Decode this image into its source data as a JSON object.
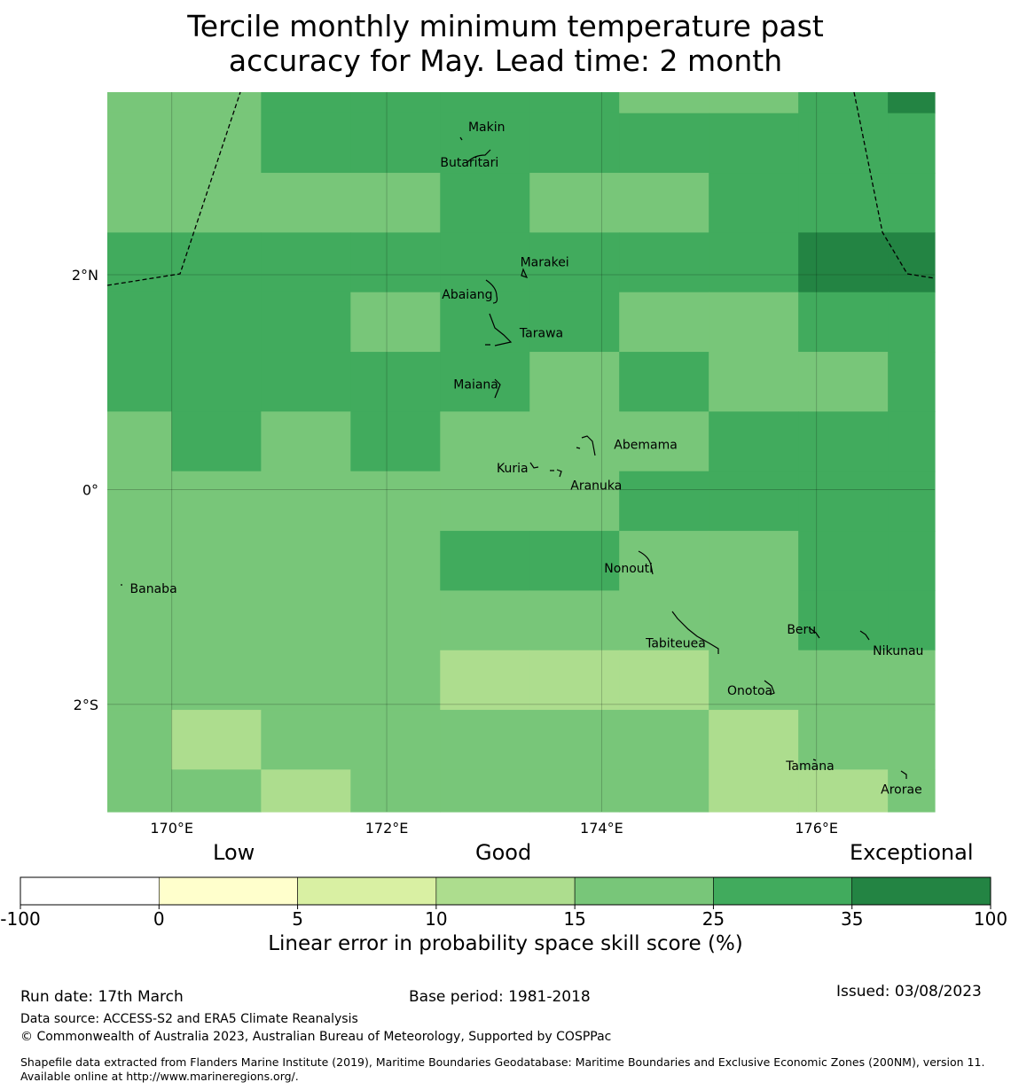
{
  "title_line1": "Tercile monthly minimum temperature past",
  "title_line2": "accuracy for May. Lead time: 2 month",
  "map": {
    "lon_range": [
      169.4,
      177.1
    ],
    "lat_range": [
      -3.0,
      3.7
    ],
    "lon_ticks": [
      {
        "value": 170,
        "label": "170°E"
      },
      {
        "value": 172,
        "label": "172°E"
      },
      {
        "value": 174,
        "label": "174°E"
      },
      {
        "value": 176,
        "label": "176°E"
      }
    ],
    "lat_ticks": [
      {
        "value": 2,
        "label": "2°N"
      },
      {
        "value": 0,
        "label": "0°"
      },
      {
        "value": -2,
        "label": "2°S"
      }
    ],
    "grid_bins": [
      [
        4,
        4,
        5,
        5,
        5,
        5,
        4,
        4,
        5,
        6
      ],
      [
        4,
        4,
        5,
        5,
        5,
        5,
        5,
        5,
        5,
        5
      ],
      [
        4,
        4,
        4,
        4,
        5,
        4,
        4,
        5,
        5,
        5
      ],
      [
        5,
        5,
        5,
        5,
        5,
        5,
        5,
        5,
        6,
        6
      ],
      [
        5,
        5,
        5,
        4,
        5,
        5,
        4,
        4,
        5,
        5
      ],
      [
        5,
        5,
        5,
        5,
        5,
        4,
        5,
        4,
        4,
        5
      ],
      [
        4,
        5,
        4,
        5,
        4,
        4,
        4,
        5,
        5,
        5
      ],
      [
        4,
        4,
        4,
        4,
        4,
        4,
        5,
        5,
        5,
        5
      ],
      [
        4,
        4,
        4,
        4,
        5,
        5,
        4,
        4,
        5,
        5
      ],
      [
        4,
        4,
        4,
        4,
        4,
        4,
        4,
        4,
        5,
        5
      ],
      [
        4,
        4,
        4,
        4,
        3,
        3,
        3,
        4,
        4,
        4
      ],
      [
        4,
        3,
        4,
        4,
        4,
        4,
        4,
        3,
        4,
        4
      ],
      [
        4,
        4,
        3,
        4,
        4,
        4,
        4,
        3,
        3,
        4
      ]
    ],
    "islands": [
      {
        "name": "Makin",
        "lon": 172.93,
        "lat": 3.38
      },
      {
        "name": "Butaritari",
        "lon": 172.77,
        "lat": 3.05
      },
      {
        "name": "Marakei",
        "lon": 173.47,
        "lat": 2.12
      },
      {
        "name": "Abaiang",
        "lon": 172.75,
        "lat": 1.82
      },
      {
        "name": "Tarawa",
        "lon": 173.44,
        "lat": 1.46
      },
      {
        "name": "Maiana",
        "lon": 172.83,
        "lat": 0.98
      },
      {
        "name": "Abemama",
        "lon": 174.41,
        "lat": 0.42
      },
      {
        "name": "Kuria",
        "lon": 173.17,
        "lat": 0.2
      },
      {
        "name": "Aranuka",
        "lon": 173.95,
        "lat": 0.04
      },
      {
        "name": "Nonouti",
        "lon": 174.25,
        "lat": -0.73
      },
      {
        "name": "Banaba",
        "lon": 169.83,
        "lat": -0.92
      },
      {
        "name": "Beru",
        "lon": 175.86,
        "lat": -1.3
      },
      {
        "name": "Tabiteuea",
        "lon": 174.69,
        "lat": -1.43
      },
      {
        "name": "Nikunau",
        "lon": 176.76,
        "lat": -1.5
      },
      {
        "name": "Onotoa",
        "lon": 175.38,
        "lat": -1.87
      },
      {
        "name": "Tamana",
        "lon": 175.94,
        "lat": -2.57
      },
      {
        "name": "Arorae",
        "lon": 176.79,
        "lat": -2.79
      }
    ]
  },
  "colorbar": {
    "category_low": "Low",
    "category_good": "Good",
    "category_exceptional": "Exceptional",
    "tick_labels": [
      "-100",
      "0",
      "5",
      "10",
      "15",
      "25",
      "35",
      "100"
    ],
    "colors": [
      "#ffffff",
      "#ffffcc",
      "#d9f0a3",
      "#addd8e",
      "#78c679",
      "#41ab5d",
      "#238443"
    ],
    "label": "Linear error in probability space skill score (%)"
  },
  "footer": {
    "run_date": "Run date: 17th March",
    "base_period": "Base period: 1981-2018",
    "issued": "Issued: 03/08/2023",
    "data_source": "Data source: ACCESS-S2 and ERA5 Climate Reanalysis",
    "copyright": "© Commonwealth of Australia 2023, Australian Bureau of Meteorology, Supported by COSPPac",
    "shapefile": "Shapefile data extracted from Flanders Marine Institute (2019), Maritime Boundaries Geodatabase: Maritime Boundaries and Exclusive Economic Zones (200NM), version 11. Available online at http://www.marineregions.org/."
  }
}
